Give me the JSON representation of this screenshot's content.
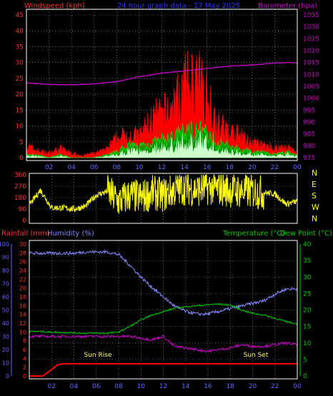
{
  "header": {
    "windspeed_label": "Windspeed (kph)",
    "title": "24 hour graph data - 17 May 2025",
    "barometer_label": "Barometer (hpa)"
  },
  "bottom_header": {
    "rainfall_label": "Rainfall (mm)",
    "humidity_label": "Humidity (%)",
    "temperature_label": "Temperature (°C)",
    "dewpoint_label": "Dew Point (°C)"
  },
  "annotations": {
    "sunrise": "Sun Rise",
    "sunset": "Sun Set"
  },
  "colors": {
    "wind_gust": "#ff0000",
    "wind_avg": "#00dd00",
    "wind_low": "#ccffcc",
    "barometer": "#cc00cc",
    "direction": "#ffff00",
    "rainfall": "#ff0000",
    "humidity": "#8888ff",
    "temperature": "#00cc00",
    "dewpoint": "#cc00cc",
    "axis_text": "#ff3333",
    "blue_axis": "#6666ff",
    "green_axis": "#00cc00",
    "frame": "#ffffff",
    "grid": "#ffffff"
  },
  "chart_data": [
    {
      "type": "area",
      "name": "wind-barometer",
      "x_ticks": [
        "02",
        "04",
        "06",
        "08",
        "10",
        "12",
        "14",
        "16",
        "18",
        "20",
        "22",
        "00"
      ],
      "x_range_hours": [
        0,
        24
      ],
      "y_left": {
        "label": "Windspeed (kph)",
        "ticks": [
          0,
          5,
          10,
          15,
          20,
          25,
          30,
          35,
          40,
          45
        ],
        "range": [
          0,
          45
        ]
      },
      "y_right": {
        "label": "Barometer (hpa)",
        "ticks": [
          975,
          980,
          985,
          990,
          995,
          1000,
          1005,
          1010,
          1015,
          1020,
          1025,
          1030,
          1035
        ],
        "range": [
          975,
          1035
        ]
      },
      "barometer": {
        "hours": [
          0,
          2,
          4,
          6,
          8,
          10,
          12,
          14,
          16,
          18,
          20,
          22,
          24
        ],
        "values": [
          1006.5,
          1005.8,
          1005.6,
          1006.0,
          1007.0,
          1009.0,
          1010.5,
          1011.5,
          1012.5,
          1013.5,
          1014.0,
          1014.8,
          1015.0
        ]
      },
      "gust_envelope": {
        "hours": [
          0,
          1,
          2,
          3,
          4,
          5,
          6,
          7,
          8,
          9,
          10,
          11,
          12,
          13,
          14,
          15,
          16,
          17,
          18,
          19,
          20,
          21,
          22,
          23,
          24
        ],
        "values": [
          5,
          3,
          2,
          4,
          2,
          1,
          2,
          3,
          8,
          10,
          9,
          16,
          18,
          22,
          30,
          33,
          28,
          14,
          11,
          9,
          6,
          5,
          4,
          5,
          2
        ]
      },
      "avg_envelope": {
        "hours": [
          0,
          1,
          2,
          3,
          4,
          5,
          6,
          7,
          8,
          9,
          10,
          11,
          12,
          13,
          14,
          15,
          16,
          17,
          18,
          19,
          20,
          21,
          22,
          23,
          24
        ],
        "values": [
          1,
          1,
          0,
          1,
          0,
          0,
          0,
          1,
          2,
          4,
          4,
          5,
          6,
          7,
          9,
          10,
          8,
          5,
          4,
          3,
          2,
          2,
          1,
          2,
          1
        ]
      }
    },
    {
      "type": "line",
      "name": "wind-direction",
      "y_ticks": [
        0,
        90,
        180,
        270,
        360
      ],
      "y_range": [
        0,
        360
      ],
      "compass": [
        "N",
        "W",
        "S",
        "E",
        "N"
      ],
      "hours": [
        0,
        1,
        2,
        3,
        4,
        5,
        6,
        7,
        8,
        9,
        10,
        11,
        12,
        13,
        14,
        15,
        16,
        17,
        18,
        19,
        20,
        21,
        22,
        23,
        24
      ],
      "values": [
        120,
        240,
        100,
        100,
        90,
        110,
        200,
        230,
        150,
        200,
        180,
        220,
        200,
        240,
        260,
        240,
        260,
        250,
        240,
        230,
        230,
        220,
        210,
        130,
        150
      ]
    },
    {
      "type": "line",
      "name": "rain-humidity-temp",
      "y_rain": {
        "label": "Rainfall (mm)",
        "ticks": [
          0,
          2,
          4,
          6,
          8,
          10,
          12,
          14,
          16,
          18,
          20,
          22,
          24,
          26,
          28,
          30
        ],
        "range": [
          0,
          30
        ]
      },
      "y_humidity": {
        "label": "Humidity (%)",
        "ticks": [
          0,
          10,
          20,
          30,
          40,
          50,
          60,
          70,
          80,
          90,
          100
        ],
        "range": [
          0,
          100
        ]
      },
      "y_temp": {
        "label": "Temperature (°C)",
        "ticks": [
          0,
          5,
          10,
          15,
          20,
          25,
          30,
          35,
          40
        ],
        "range": [
          0,
          40
        ]
      },
      "humidity": {
        "hours": [
          0,
          1,
          2,
          3,
          4,
          5,
          6,
          7,
          8,
          9,
          10,
          11,
          12,
          13,
          14,
          15,
          16,
          17,
          18,
          19,
          20,
          21,
          22,
          23,
          24
        ],
        "values": [
          93,
          93,
          93,
          93,
          93,
          94,
          94,
          94,
          92,
          84,
          75,
          67,
          60,
          53,
          49,
          47,
          47,
          49,
          51,
          53,
          55,
          57,
          62,
          66,
          66
        ]
      },
      "temperature": {
        "hours": [
          0,
          1,
          2,
          3,
          4,
          5,
          6,
          7,
          8,
          9,
          10,
          11,
          12,
          13,
          14,
          15,
          16,
          17,
          18,
          19,
          20,
          21,
          22,
          23,
          24
        ],
        "values": [
          13.5,
          13.5,
          13.3,
          13.2,
          13.1,
          13.0,
          13.0,
          13.0,
          13.3,
          15.0,
          17.0,
          18.5,
          19.5,
          20.5,
          21.0,
          21.3,
          21.6,
          21.8,
          21.5,
          20.0,
          19.0,
          18.5,
          17.5,
          16.5,
          15.8
        ]
      },
      "dewpoint": {
        "hours": [
          0,
          1,
          2,
          3,
          4,
          5,
          6,
          7,
          8,
          9,
          10,
          11,
          12,
          13,
          14,
          15,
          16,
          17,
          18,
          19,
          20,
          21,
          22,
          23,
          24
        ],
        "values": [
          12,
          12,
          12,
          12,
          12,
          12,
          12,
          12,
          12,
          12,
          11.5,
          11,
          12,
          9,
          8.5,
          8,
          7.5,
          8,
          8.5,
          9.5,
          9,
          9,
          9.5,
          10,
          9.5
        ]
      },
      "rainfall": {
        "hours": [
          0,
          1,
          1.2,
          2,
          2.5,
          3,
          24
        ],
        "values": [
          0,
          0,
          0,
          1.5,
          2.5,
          2.8,
          2.8
        ]
      }
    }
  ]
}
